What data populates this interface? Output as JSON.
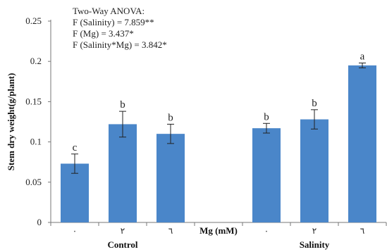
{
  "chart_data": {
    "type": "bar",
    "ylabel": "Stem dry weight(g/plant)",
    "ylim": [
      0,
      0.25
    ],
    "yticks": [
      0,
      0.05,
      0.1,
      0.15,
      0.2,
      0.25
    ],
    "ytick_labels": [
      "0",
      "0.05",
      "0.1",
      "0.15",
      "0.2",
      "0.25"
    ],
    "groups": [
      "Control",
      "Salinity"
    ],
    "axis_annotation": "Mg (mM)",
    "bars": [
      {
        "group": "Control",
        "category": "٠",
        "value": 0.073,
        "error": 0.012,
        "letter": "c"
      },
      {
        "group": "Control",
        "category": "٢",
        "value": 0.122,
        "error": 0.016,
        "letter": "b"
      },
      {
        "group": "Control",
        "category": "٦",
        "value": 0.11,
        "error": 0.012,
        "letter": "b"
      },
      {
        "group": "Salinity",
        "category": "٠",
        "value": 0.117,
        "error": 0.006,
        "letter": "b"
      },
      {
        "group": "Salinity",
        "category": "٢",
        "value": 0.128,
        "error": 0.012,
        "letter": "b"
      },
      {
        "group": "Salinity",
        "category": "٦",
        "value": 0.195,
        "error": 0.003,
        "letter": "a"
      }
    ],
    "annotations": [
      "Two-Way ANOVA:",
      "F (Salinity) = 7.859**",
      "F (Mg) = 3.437*",
      "F (Salinity*Mg) = 3.842*"
    ],
    "bar_color": "#4a86c9",
    "grid": false
  }
}
